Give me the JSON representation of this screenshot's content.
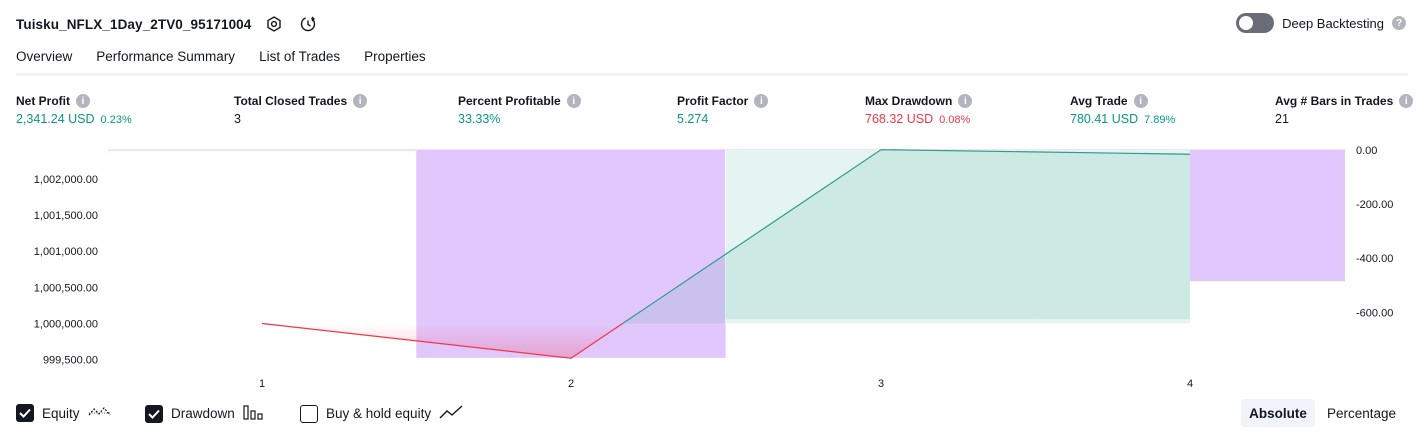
{
  "header": {
    "title": "Tuisku_NFLX_1Day_2TV0_95171004",
    "deep_backtesting_label": "Deep Backtesting",
    "deep_backtesting_enabled": false
  },
  "tabs": [
    {
      "label": "Overview",
      "active": true
    },
    {
      "label": "Performance Summary",
      "active": false
    },
    {
      "label": "List of Trades",
      "active": false
    },
    {
      "label": "Properties",
      "active": false
    }
  ],
  "metrics": [
    {
      "label": "Net Profit",
      "value": "2,341.24 USD",
      "pct": "0.23%",
      "tone": "pos"
    },
    {
      "label": "Total Closed Trades",
      "value": "3",
      "pct": "",
      "tone": ""
    },
    {
      "label": "Percent Profitable",
      "value": "33.33%",
      "pct": "",
      "tone": "pos"
    },
    {
      "label": "Profit Factor",
      "value": "5.274",
      "pct": "",
      "tone": "pos"
    },
    {
      "label": "Max Drawdown",
      "value": "768.32 USD",
      "pct": "0.08%",
      "tone": "neg"
    },
    {
      "label": "Avg Trade",
      "value": "780.41 USD",
      "pct": "7.89%",
      "tone": "pos"
    },
    {
      "label": "Avg # Bars in Trades",
      "value": "21",
      "pct": "",
      "tone": ""
    }
  ],
  "chart_data": {
    "type": "line",
    "x": [
      1,
      2,
      3,
      4
    ],
    "left_axis_ticks": [
      "1,002,000.00",
      "1,001,500.00",
      "1,001,000.00",
      "1,000,500.00",
      "1,000,000.00",
      "999,500.00"
    ],
    "right_axis_ticks": [
      "0.00",
      "-200.00",
      "-400.00",
      "-600.00"
    ],
    "x_ticks": [
      "1",
      "2",
      "3",
      "4"
    ],
    "series": [
      {
        "role": "equity",
        "values": [
          1000000,
          999519.7,
          1002404.3,
          1002341.24
        ]
      },
      {
        "role": "drawdown",
        "values": [
          0,
          -768.32,
          -618.0,
          -485.0
        ]
      },
      {
        "role": "buy_hold_equity",
        "values": [
          0,
          0,
          -625.0,
          -625.0
        ]
      }
    ],
    "colors": {
      "equity_up": "#2a9d8f",
      "equity_down": "#f23645",
      "drawdown_fill": "#e0c2fd",
      "buy_hold_fill": "#e3f4f1"
    }
  },
  "footer": {
    "toggles": [
      {
        "label": "Equity",
        "checked": true,
        "icon": "equity-icon"
      },
      {
        "label": "Drawdown",
        "checked": true,
        "icon": "drawdown-bars-icon"
      },
      {
        "label": "Buy & hold equity",
        "checked": false,
        "icon": "buy-hold-line-icon"
      }
    ],
    "scale_options": [
      {
        "label": "Absolute",
        "active": true
      },
      {
        "label": "Percentage",
        "active": false
      }
    ]
  }
}
